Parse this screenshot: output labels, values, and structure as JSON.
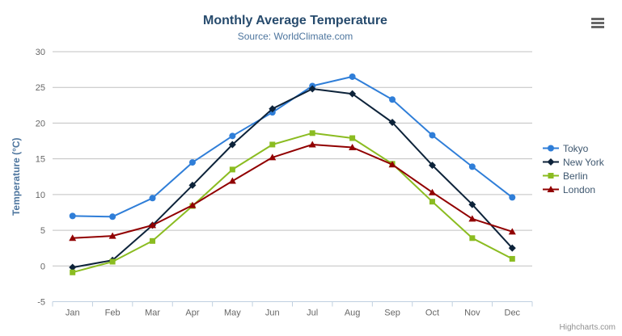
{
  "header": {
    "title": "Monthly Average Temperature",
    "subtitle": "Source: WorldClimate.com"
  },
  "toolbar": {
    "context_menu_icon": "hamburger-icon"
  },
  "credits": {
    "label": "Highcharts.com"
  },
  "colors": {
    "title_text": "#274b6d",
    "subtitle_text": "#4d759e",
    "axis_title_text": "#4d759e",
    "axis_label_text": "#666666",
    "gridline": "#c0c0c0",
    "axis_line": "#c0d0e0",
    "legend_text": "#3e576f",
    "credits_text": "#909090",
    "menu_icon": "#666666",
    "background": "#ffffff"
  },
  "chart_data": {
    "type": "line",
    "title": "Monthly Average Temperature",
    "subtitle": "Source: WorldClimate.com",
    "xlabel": "",
    "ylabel": "Temperature (°C)",
    "ylim": [
      -5,
      30
    ],
    "ytick_step": 5,
    "yticks": [
      -5,
      0,
      5,
      10,
      15,
      20,
      25,
      30
    ],
    "grid": true,
    "legend_position": "right",
    "categories": [
      "Jan",
      "Feb",
      "Mar",
      "Apr",
      "May",
      "Jun",
      "Jul",
      "Aug",
      "Sep",
      "Oct",
      "Nov",
      "Dec"
    ],
    "series": [
      {
        "name": "Tokyo",
        "color": "#2f7ed8",
        "marker": "circle",
        "values": [
          7.0,
          6.9,
          9.5,
          14.5,
          18.2,
          21.5,
          25.2,
          26.5,
          23.3,
          18.3,
          13.9,
          9.6
        ]
      },
      {
        "name": "New York",
        "color": "#0d233a",
        "marker": "diamond",
        "values": [
          -0.2,
          0.8,
          5.7,
          11.3,
          17.0,
          22.0,
          24.8,
          24.1,
          20.1,
          14.1,
          8.6,
          2.5
        ]
      },
      {
        "name": "Berlin",
        "color": "#8bbc21",
        "marker": "square",
        "values": [
          -0.9,
          0.6,
          3.5,
          8.4,
          13.5,
          17.0,
          18.6,
          17.9,
          14.3,
          9.0,
          3.9,
          1.0
        ]
      },
      {
        "name": "London",
        "color": "#910000",
        "marker": "triangle",
        "values": [
          3.9,
          4.2,
          5.7,
          8.5,
          11.9,
          15.2,
          17.0,
          16.6,
          14.2,
          10.3,
          6.6,
          4.8
        ]
      }
    ]
  }
}
